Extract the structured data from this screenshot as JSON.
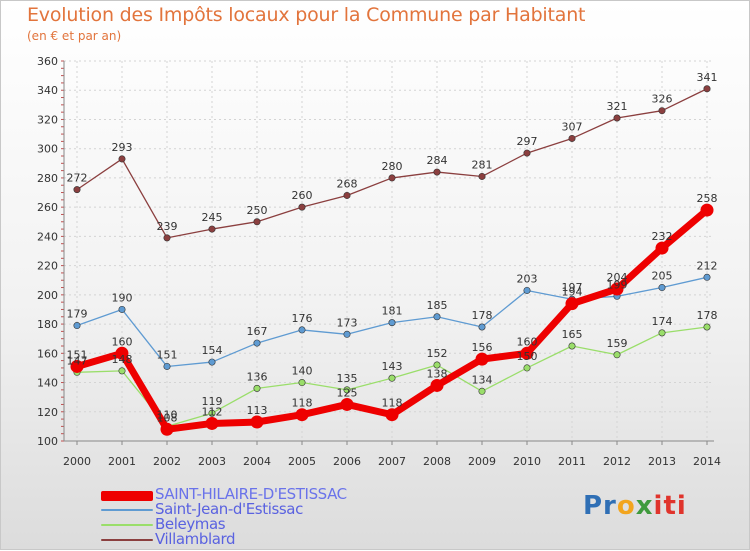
{
  "title": "Evolution des Impôts locaux pour la Commune par Habitant",
  "subtitle": "(en € et par an)",
  "logo": {
    "part1": "Pr",
    "part2": "o",
    "part3": "x",
    "part4": "iti"
  },
  "chart_data": {
    "type": "line",
    "title": "Evolution des Impôts locaux pour la Commune par Habitant",
    "ylabel": "(en € et par an)",
    "xlabel": "",
    "ylim": [
      100,
      360
    ],
    "yticks": [
      100,
      120,
      140,
      160,
      180,
      200,
      220,
      240,
      260,
      280,
      300,
      320,
      340,
      360
    ],
    "x": [
      "2000",
      "2001",
      "2002",
      "2003",
      "2004",
      "2005",
      "2006",
      "2007",
      "2008",
      "2009",
      "2010",
      "2011",
      "2012",
      "2013",
      "2014"
    ],
    "series": [
      {
        "name": "SAINT-HILAIRE-D'ESTISSAC",
        "color": "#ee0000",
        "values": [
          151,
          160,
          108,
          112,
          113,
          118,
          125,
          118,
          138,
          156,
          160,
          194,
          204,
          232,
          258
        ],
        "labels": [
          "151",
          "160",
          "108",
          "112",
          "113",
          "118",
          "125",
          "118",
          "138",
          "156",
          "160",
          "194",
          "204",
          "232",
          "258"
        ]
      },
      {
        "name": "Saint-Jean-d'Estissac",
        "color": "#5f9bd2",
        "values": [
          179,
          190,
          151,
          154,
          167,
          176,
          173,
          181,
          185,
          178,
          203,
          197,
          199,
          205,
          212
        ],
        "labels": [
          "179",
          "190",
          "151",
          "154",
          "167",
          "176",
          "173",
          "181",
          "185",
          "178",
          "203",
          "197",
          "199",
          "205",
          "212"
        ]
      },
      {
        "name": "Beleymas",
        "color": "#9ade6a",
        "values": [
          147,
          148,
          110,
          119,
          136,
          140,
          135,
          143,
          152,
          134,
          150,
          165,
          159,
          174,
          178
        ],
        "labels": [
          "147",
          "148",
          "110",
          "119",
          "136",
          "140",
          "135",
          "143",
          "152",
          "134",
          "150",
          "165",
          "159",
          "174",
          "178"
        ]
      },
      {
        "name": "Villamblard",
        "color": "#8b3f3f",
        "values": [
          272,
          293,
          239,
          245,
          250,
          260,
          268,
          280,
          284,
          281,
          297,
          307,
          321,
          326,
          341
        ],
        "labels": [
          "272",
          "293",
          "239",
          "245",
          "250",
          "260",
          "268",
          "280",
          "284",
          "281",
          "297",
          "307",
          "321",
          "326",
          "341"
        ]
      }
    ]
  }
}
